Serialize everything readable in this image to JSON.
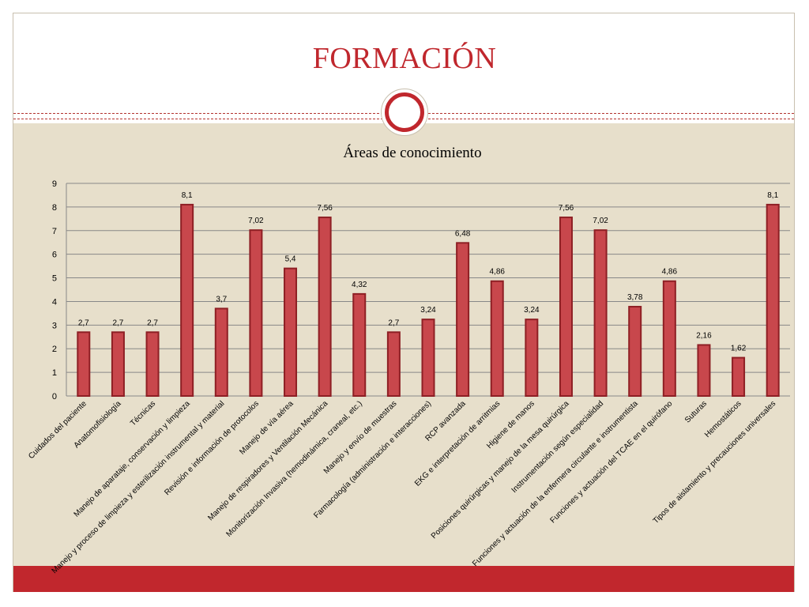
{
  "slide": {
    "title": "FORMACIÓN"
  },
  "colors": {
    "accent": "#c0272d",
    "background": "#e7dfcb",
    "bar_fill": "#c8474c",
    "bar_stroke": "#8e1f24",
    "grid": "#888888"
  },
  "chart_data": {
    "type": "bar",
    "title": "Áreas de conocimiento",
    "xlabel": "",
    "ylabel": "",
    "ylim": [
      0,
      9
    ],
    "yticks": [
      0,
      1,
      2,
      3,
      4,
      5,
      6,
      7,
      8,
      9
    ],
    "grid": true,
    "legend": "none",
    "categories": [
      "Cuidados del paciente",
      "Anatomofisiología",
      "Técnicas",
      "Manejo de aparataje, conservación y limpieza",
      "Manejo y proceso de limpieza y esterilización instrumental y material",
      "Revisión e información de protocolos",
      "Manejo de vía aérea",
      "Manejo de respiradores y Ventilación Mecánica",
      "Monitorización Invasiva (hemodinámica, craneal, etc.)",
      "Manejo y envío de muestras",
      "Farmacología (administración e interacciones)",
      "RCP avanzada",
      "EKG e interpretación de arritmias",
      "Higiene de manos",
      "Posiciones quirúrgicas y manejo de la mesa quirúrgica",
      "Instrumentación según especialidad",
      "Funciones y actuación de la enfermera circulante e instrumentista",
      "Funciones y actuación del TCAE en el quirófano",
      "Suturas",
      "Hemostáticos",
      "Tipos de aislamiento y precauciones universales"
    ],
    "values": [
      2.7,
      2.7,
      2.7,
      8.1,
      3.7,
      7.02,
      5.4,
      7.56,
      4.32,
      2.7,
      3.24,
      6.48,
      4.86,
      3.24,
      7.56,
      7.02,
      3.78,
      4.86,
      2.16,
      1.62,
      8.1
    ],
    "data_labels": [
      "2,7",
      "2,7",
      "2,7",
      "8,1",
      "3,7",
      "7,02",
      "5,4",
      "7,56",
      "4,32",
      "2,7",
      "3,24",
      "6,48",
      "4,86",
      "3,24",
      "7,56",
      "7,02",
      "3,78",
      "4,86",
      "2,16",
      "1,62",
      "8,1"
    ]
  }
}
